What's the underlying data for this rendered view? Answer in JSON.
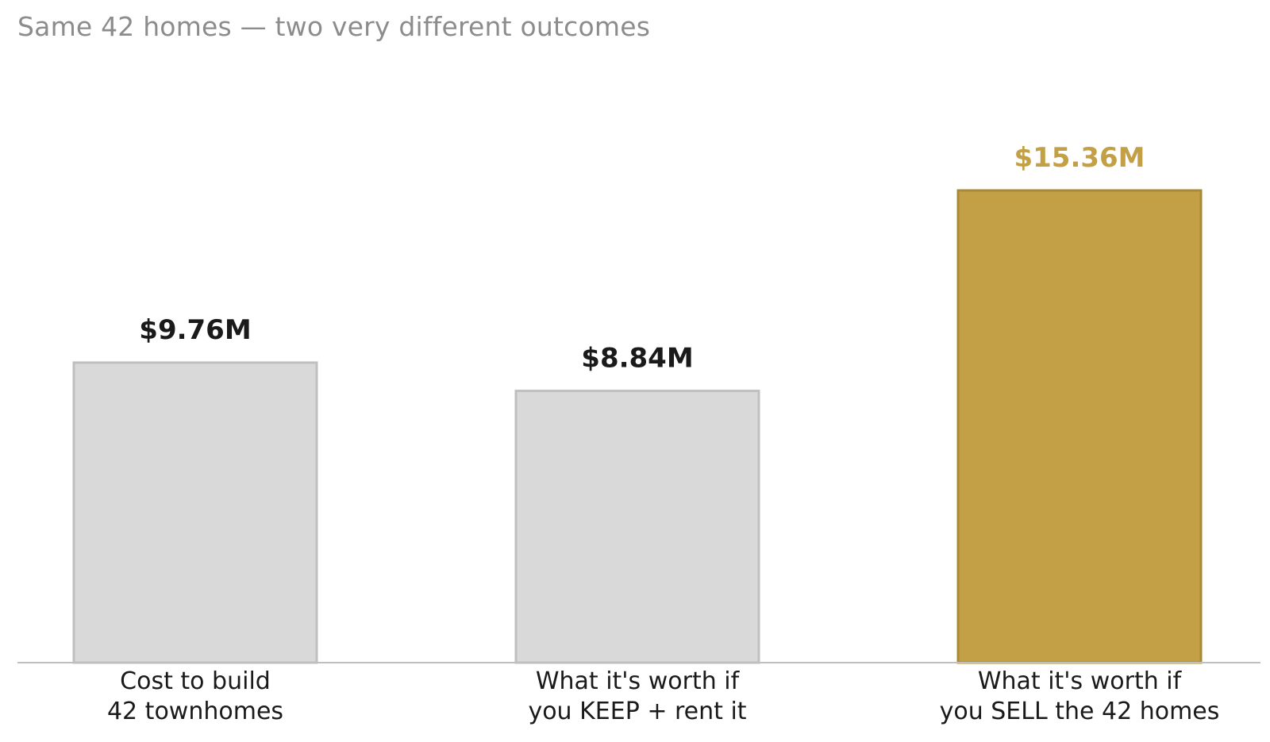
{
  "title": "Same 42 homes — two very different outcomes",
  "colors": {
    "neutral_fill": "#d9d9d9",
    "neutral_stroke": "#bfbfbf",
    "highlight_fill": "#c3a046",
    "highlight_stroke": "#a88a35",
    "neutral_label": "#1a1a1a",
    "highlight_label": "#c3a046",
    "baseline": "#bfbfbf",
    "title": "#8c8c8c"
  },
  "chart_data": {
    "type": "bar",
    "title": "Same 42 homes — two very different outcomes",
    "xlabel": "",
    "ylabel": "",
    "grid": false,
    "ylim": [
      0,
      15.36
    ],
    "categories": [
      [
        "Cost to build",
        "42 townhomes"
      ],
      [
        "What it's worth if",
        "you KEEP + rent it"
      ],
      [
        "What it's worth if",
        "you SELL the 42 homes"
      ]
    ],
    "values": [
      9.76,
      8.84,
      15.36
    ],
    "value_labels": [
      "$9.76M",
      "$8.84M",
      "$15.36M"
    ],
    "highlight": [
      false,
      false,
      true
    ]
  }
}
